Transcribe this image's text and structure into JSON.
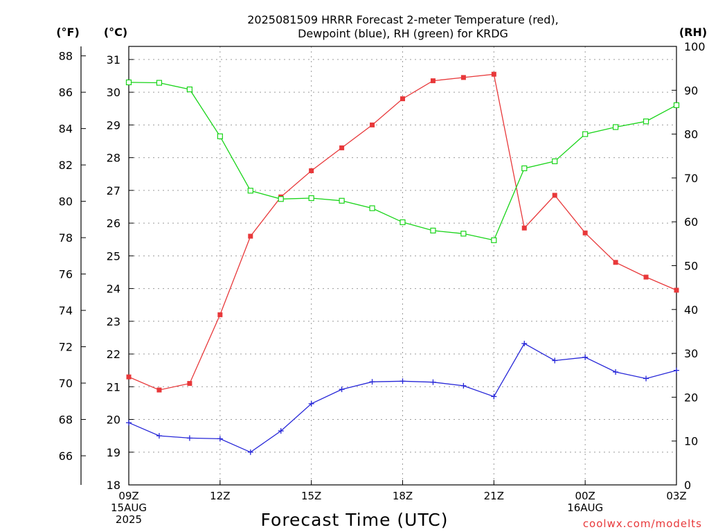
{
  "chart_data": {
    "type": "line",
    "title": [
      "2025081509 HRRR Forecast 2-meter Temperature (red),",
      "Dewpoint (blue), RH (green) for KRDG"
    ],
    "xlabel": "Forecast Time (UTC)",
    "units": {
      "fahrenheit": "(°F)",
      "celsius": "(°C)",
      "rh": "(RH)"
    },
    "credit": "coolwx.com/modelts",
    "colors": {
      "temperature": "#e8383a",
      "dewpoint": "#2626d8",
      "rh": "#18d418"
    },
    "grid": true,
    "x_hours": [
      0,
      1,
      2,
      3,
      4,
      5,
      6,
      7,
      8,
      9,
      10,
      11,
      12,
      13,
      14,
      15,
      16,
      17,
      18
    ],
    "x_ticks": [
      {
        "hour": 0,
        "lines": [
          "09Z",
          "15AUG",
          "2025"
        ]
      },
      {
        "hour": 3,
        "lines": [
          "12Z"
        ]
      },
      {
        "hour": 6,
        "lines": [
          "15Z"
        ]
      },
      {
        "hour": 9,
        "lines": [
          "18Z"
        ]
      },
      {
        "hour": 12,
        "lines": [
          "21Z"
        ]
      },
      {
        "hour": 15,
        "lines": [
          "00Z",
          "16AUG"
        ]
      },
      {
        "hour": 18,
        "lines": [
          "03Z"
        ]
      }
    ],
    "y_celsius": {
      "range": [
        18,
        31.4
      ],
      "ticks": [
        18,
        19,
        20,
        21,
        22,
        23,
        24,
        25,
        26,
        27,
        28,
        29,
        30,
        31
      ]
    },
    "y_fahrenheit": {
      "ticks": [
        66,
        68,
        70,
        72,
        74,
        76,
        78,
        80,
        82,
        84,
        86,
        88
      ]
    },
    "y_rh": {
      "range": [
        0,
        100
      ],
      "ticks": [
        0,
        10,
        20,
        30,
        40,
        50,
        60,
        70,
        80,
        90,
        100
      ]
    },
    "series": [
      {
        "key": "temperature",
        "axis": "celsius",
        "marker": "filled-square",
        "values": [
          21.3,
          20.9,
          21.1,
          23.2,
          25.6,
          26.8,
          27.6,
          28.3,
          29.0,
          29.8,
          30.35,
          30.45,
          30.55,
          25.85,
          26.85,
          25.7,
          24.8,
          24.35,
          23.95
        ]
      },
      {
        "key": "dewpoint",
        "axis": "celsius",
        "marker": "plus",
        "values": [
          19.9,
          19.5,
          19.43,
          19.41,
          19.0,
          19.65,
          20.48,
          20.92,
          21.15,
          21.17,
          21.14,
          21.03,
          20.7,
          22.32,
          21.8,
          21.9,
          21.45,
          21.25,
          21.5
        ]
      },
      {
        "key": "rh",
        "axis": "rh",
        "marker": "open-square",
        "values": [
          91.8,
          91.7,
          90.2,
          79.5,
          67.1,
          65.2,
          65.4,
          64.8,
          63.1,
          59.9,
          58.0,
          57.3,
          55.8,
          72.2,
          73.8,
          80.0,
          81.6,
          82.9,
          86.6
        ]
      }
    ]
  }
}
